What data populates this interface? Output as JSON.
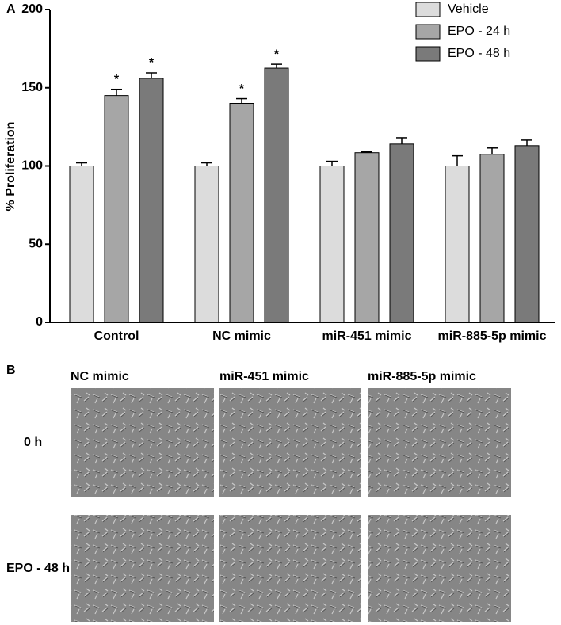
{
  "chart_data": {
    "type": "bar",
    "panel_label": "A",
    "ylabel": "% Proliferation",
    "categories": [
      "Control",
      "NC mimic",
      "miR-451 mimic",
      "miR-885-5p mimic"
    ],
    "series": [
      {
        "name": "Vehicle",
        "color": "#dcdcdc",
        "values": [
          100,
          100,
          100,
          100
        ],
        "errors": [
          2,
          2,
          3,
          6.5
        ],
        "significance": [
          null,
          null,
          null,
          null
        ]
      },
      {
        "name": "EPO - 24 h",
        "color": "#a6a6a6",
        "values": [
          145,
          140,
          108.5,
          107.5
        ],
        "errors": [
          4,
          3,
          0.5,
          4
        ],
        "significance": [
          "*",
          "*",
          null,
          null
        ]
      },
      {
        "name": "EPO - 48 h",
        "color": "#7a7a7a",
        "values": [
          156,
          162.5,
          114,
          113
        ],
        "errors": [
          3.5,
          2.5,
          4,
          3.5
        ],
        "significance": [
          "*",
          "*",
          null,
          null
        ]
      }
    ],
    "ylim": [
      0,
      200
    ],
    "yticks": [
      0,
      50,
      100,
      150,
      200
    ],
    "grid": false,
    "legend": "top-right"
  },
  "panel_b": {
    "label": "B",
    "columns": [
      "NC mimic",
      "miR-451 mimic",
      "miR-885-5p mimic"
    ],
    "rows": [
      "0 h",
      "EPO - 48 h"
    ]
  }
}
